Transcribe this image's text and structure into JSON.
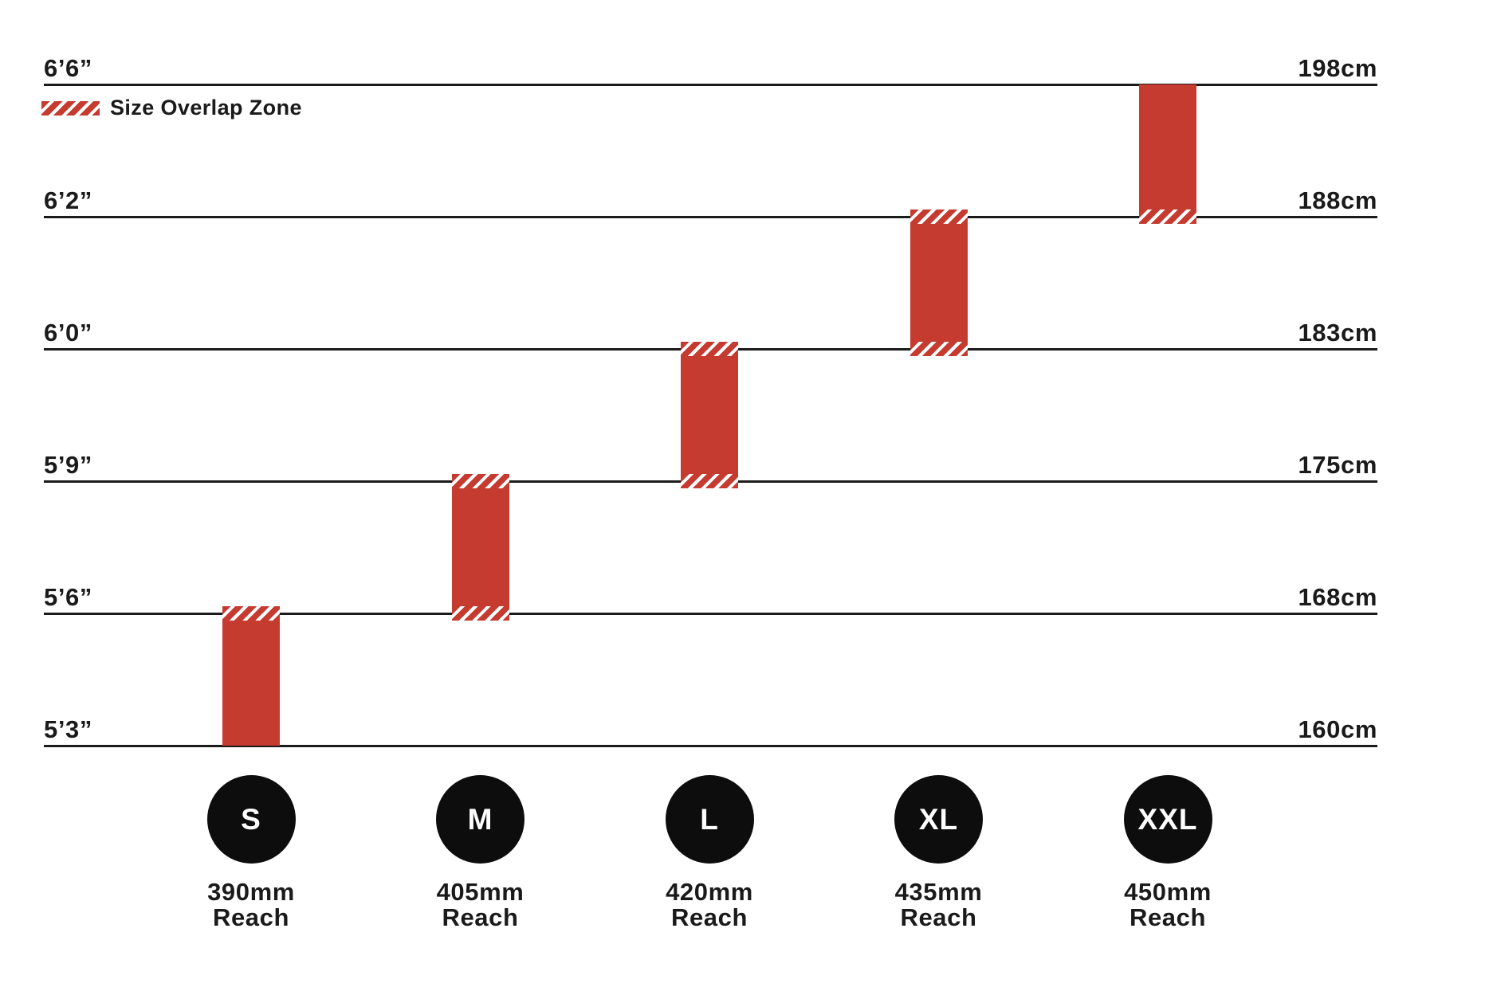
{
  "chart_data": {
    "type": "bar",
    "title": "",
    "legend": {
      "label": "Size Overlap Zone"
    },
    "y_axis": {
      "left_unit": "feet/inches",
      "right_unit": "centimeters",
      "lines": [
        {
          "ft": "6’6”",
          "cm": 198,
          "cm_label": "198cm"
        },
        {
          "ft": "6’2”",
          "cm": 188,
          "cm_label": "188cm"
        },
        {
          "ft": "6’0”",
          "cm": 183,
          "cm_label": "183cm"
        },
        {
          "ft": "5’9”",
          "cm": 175,
          "cm_label": "175cm"
        },
        {
          "ft": "5’6”",
          "cm": 168,
          "cm_label": "168cm"
        },
        {
          "ft": "5’3”",
          "cm": 160,
          "cm_label": "160cm"
        }
      ]
    },
    "sizes": [
      {
        "label": "S",
        "reach_value": "390mm",
        "reach_caption": "Reach",
        "height_min_cm": 160,
        "height_max_cm": 168,
        "overlap_top": true,
        "overlap_bottom": false
      },
      {
        "label": "M",
        "reach_value": "405mm",
        "reach_caption": "Reach",
        "height_min_cm": 168,
        "height_max_cm": 175,
        "overlap_top": true,
        "overlap_bottom": true
      },
      {
        "label": "L",
        "reach_value": "420mm",
        "reach_caption": "Reach",
        "height_min_cm": 175,
        "height_max_cm": 183,
        "overlap_top": true,
        "overlap_bottom": true
      },
      {
        "label": "XL",
        "reach_value": "435mm",
        "reach_caption": "Reach",
        "height_min_cm": 183,
        "height_max_cm": 188,
        "overlap_top": true,
        "overlap_bottom": true
      },
      {
        "label": "XXL",
        "reach_value": "450mm",
        "reach_caption": "Reach",
        "height_min_cm": 188,
        "height_max_cm": 198,
        "overlap_top": false,
        "overlap_bottom": true
      }
    ],
    "colors": {
      "bar_red": "#c63b30",
      "line_black": "#1b1b1b",
      "circle_black": "#0d0d0d",
      "text_black": "#1a1a1a",
      "stripe_white": "#ffffff"
    }
  }
}
